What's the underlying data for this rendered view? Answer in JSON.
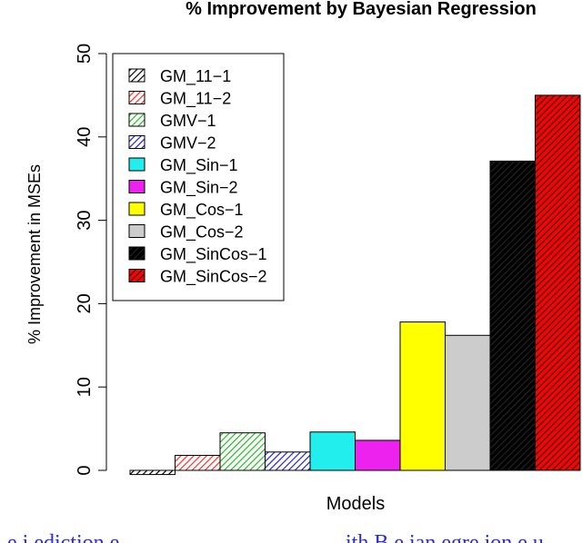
{
  "chart_data": {
    "type": "bar",
    "title": "% Improvement by Bayesian Regression",
    "xlabel": "Models",
    "ylabel": "% Improvement in MSEs",
    "ylim": [
      0,
      50
    ],
    "yticks": [
      0,
      10,
      20,
      30,
      40,
      50
    ],
    "legend_position": "top-left",
    "categories": [
      "GM_11−1",
      "GM_11−2",
      "GMV−1",
      "GMV−2",
      "GM_Sin−1",
      "GM_Sin−2",
      "GM_Cos−1",
      "GM_Cos−2",
      "GM_SinCos−1",
      "GM_SinCos−2"
    ],
    "values": [
      -0.5,
      1.8,
      4.5,
      2.2,
      4.6,
      3.6,
      17.8,
      16.2,
      37.1,
      45.0
    ],
    "colors": [
      "#ffffff",
      "#ff2a2a",
      "#22bb22",
      "#2222cc",
      "#22eeee",
      "#ee22ee",
      "#ffff00",
      "#cccccc",
      "#000000",
      "#ff0000"
    ],
    "hatches": [
      "diag",
      "diag",
      "diag",
      "diag",
      "none",
      "none",
      "none",
      "none",
      "diag",
      "diag"
    ]
  },
  "caption": {
    "left_text": "e  i  ediction  e",
    "right_text": "ith  B  e  ian  egre  ion  e  u"
  }
}
